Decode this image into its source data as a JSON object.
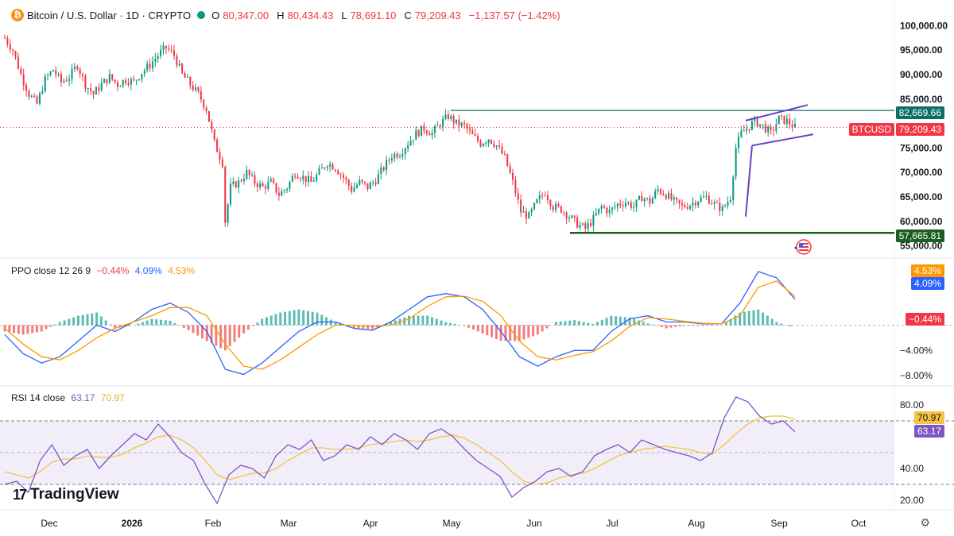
{
  "header": {
    "symbol_title": "Bitcoin / U.S. Dollar · 1D · CRYPTO",
    "open_label": "O",
    "open_value": "80,347.00",
    "high_label": "H",
    "high_value": "80,434.43",
    "low_label": "L",
    "low_value": "78,691.10",
    "close_label": "C",
    "close_value": "79,209.43",
    "change_value": "−1,137.57 (−1.42%)",
    "symbol_icon": "bitcoin-icon"
  },
  "tags": {
    "resistance": "82,669.66",
    "symbol": "BTCUSD",
    "last_price": "79,209.43",
    "support": "57,665.81",
    "ppo_signal": "4.53%",
    "ppo_line": "4.09%",
    "ppo_hist": "−0.44%",
    "rsi_ma": "70.97",
    "rsi": "63.17"
  },
  "ppo_pane": {
    "title": "PPO close 12 26 9",
    "v1": "−0.44%",
    "v2": "4.09%",
    "v3": "4.53%"
  },
  "rsi_pane": {
    "title": "RSI 14 close",
    "v1": "63.17",
    "v2": "70.97"
  },
  "branding": {
    "name": "TradingView"
  },
  "colors": {
    "up": "#089981",
    "down": "#f23645",
    "ppo_line": "#2962ff",
    "signal": "#ff9800",
    "rsi": "#7e57c2",
    "rsi_ma": "#f5c242",
    "support": "#1b5e20",
    "resistance": "#0b6e68",
    "channel": "#6a3fc7"
  },
  "chart_data": [
    {
      "type": "candlestick",
      "title": "Bitcoin / U.S. Dollar · 1D · CRYPTO",
      "yticks": [
        "100,000.00",
        "95,000.00",
        "90,000.00",
        "85,000.00",
        "75,000.00",
        "70,000.00",
        "65,000.00",
        "60,000.00",
        "55,000.00"
      ],
      "ylim": [
        53000,
        102000
      ],
      "xticks": [
        "Dec",
        "2026",
        "Feb",
        "Mar",
        "Apr",
        "May",
        "Jun",
        "Jul",
        "Aug",
        "Sep",
        "Oct"
      ],
      "last_close": 79209.43,
      "resistance_level": 82669.66,
      "support_level": 57665.81,
      "closes_path": [
        [
          0,
          97500
        ],
        [
          3,
          95000
        ],
        [
          6,
          90000
        ],
        [
          9,
          86000
        ],
        [
          12,
          84000
        ],
        [
          15,
          89000
        ],
        [
          18,
          91000
        ],
        [
          21,
          88500
        ],
        [
          24,
          89500
        ],
        [
          27,
          92000
        ],
        [
          30,
          88000
        ],
        [
          33,
          86000
        ],
        [
          36,
          88000
        ],
        [
          39,
          89500
        ],
        [
          42,
          88000
        ],
        [
          45,
          89000
        ],
        [
          48,
          88500
        ],
        [
          51,
          90500
        ],
        [
          54,
          92000
        ],
        [
          57,
          94000
        ],
        [
          60,
          95500
        ],
        [
          63,
          94000
        ],
        [
          66,
          90000
        ],
        [
          69,
          88000
        ],
        [
          72,
          86000
        ],
        [
          75,
          83000
        ],
        [
          78,
          76000
        ],
        [
          81,
          72000
        ],
        [
          82,
          60000
        ],
        [
          84,
          67000
        ],
        [
          87,
          68000
        ],
        [
          90,
          70000
        ],
        [
          93,
          68000
        ],
        [
          96,
          67000
        ],
        [
          99,
          68000
        ],
        [
          102,
          65500
        ],
        [
          105,
          67000
        ],
        [
          108,
          70000
        ],
        [
          111,
          69000
        ],
        [
          114,
          68000
        ],
        [
          117,
          70000
        ],
        [
          120,
          72000
        ],
        [
          123,
          71000
        ],
        [
          126,
          69000
        ],
        [
          129,
          66500
        ],
        [
          132,
          68000
        ],
        [
          135,
          67000
        ],
        [
          138,
          68500
        ],
        [
          141,
          71000
        ],
        [
          144,
          73500
        ],
        [
          147,
          74000
        ],
        [
          150,
          76000
        ],
        [
          153,
          78000
        ],
        [
          156,
          79000
        ],
        [
          159,
          78000
        ],
        [
          162,
          80000
        ],
        [
          165,
          81500
        ],
        [
          168,
          80000
        ],
        [
          171,
          79500
        ],
        [
          174,
          77500
        ],
        [
          177,
          76000
        ],
        [
          180,
          77000
        ],
        [
          183,
          75500
        ],
        [
          186,
          73000
        ],
        [
          189,
          68000
        ],
        [
          192,
          62000
        ],
        [
          195,
          61000
        ],
        [
          198,
          64000
        ],
        [
          201,
          66000
        ],
        [
          204,
          63000
        ],
        [
          207,
          62500
        ],
        [
          210,
          61000
        ],
        [
          213,
          59500
        ],
        [
          216,
          58500
        ],
        [
          219,
          60500
        ],
        [
          222,
          63000
        ],
        [
          225,
          62000
        ],
        [
          228,
          63500
        ],
        [
          231,
          64000
        ],
        [
          234,
          63000
        ],
        [
          237,
          65000
        ],
        [
          240,
          64000
        ],
        [
          243,
          66500
        ],
        [
          246,
          65500
        ],
        [
          249,
          64000
        ],
        [
          252,
          63000
        ],
        [
          255,
          63500
        ],
        [
          258,
          64500
        ],
        [
          261,
          65000
        ],
        [
          264,
          63500
        ],
        [
          267,
          62500
        ],
        [
          270,
          65000
        ],
        [
          271,
          70000
        ],
        [
          272,
          75000
        ],
        [
          274,
          78000
        ],
        [
          276,
          79000
        ],
        [
          279,
          80500
        ],
        [
          282,
          79500
        ],
        [
          285,
          78000
        ],
        [
          288,
          81000
        ],
        [
          291,
          80500
        ],
        [
          294,
          79209
        ]
      ]
    },
    {
      "type": "line",
      "title": "PPO close 12 26 9",
      "yticks": [
        "4.53%",
        "4.09%",
        "−4.00%",
        "−8.00%"
      ],
      "ylim": [
        -9,
        9
      ],
      "series": [
        {
          "name": "PPO",
          "values": [
            -1.5,
            -4.5,
            -6.0,
            -5.0,
            -2.5,
            0.0,
            -1.0,
            0.5,
            2.5,
            3.5,
            2.0,
            -1.0,
            -7.0,
            -7.8,
            -6.0,
            -3.5,
            -1.0,
            0.5,
            0.5,
            -0.5,
            -0.8,
            0.5,
            2.5,
            4.5,
            5.0,
            4.5,
            2.5,
            -1.0,
            -5.0,
            -6.5,
            -5.0,
            -4.0,
            -4.0,
            -1.0,
            1.0,
            1.5,
            0.5,
            0.5,
            0.2,
            0.2,
            3.5,
            8.5,
            7.5,
            4.09
          ]
        },
        {
          "name": "Signal",
          "values": [
            -0.5,
            -3.0,
            -5.0,
            -5.5,
            -4.0,
            -2.0,
            -0.5,
            0.5,
            1.5,
            2.8,
            2.8,
            1.5,
            -3.0,
            -6.5,
            -7.0,
            -5.5,
            -3.5,
            -1.5,
            0.0,
            0.0,
            -0.2,
            0.0,
            1.0,
            3.0,
            4.5,
            4.6,
            3.8,
            1.5,
            -2.5,
            -5.0,
            -5.5,
            -4.8,
            -4.2,
            -2.5,
            -0.2,
            1.2,
            1.0,
            0.6,
            0.3,
            0.2,
            1.5,
            6.0,
            7.0,
            4.53
          ]
        }
      ],
      "hist_last": -0.44
    },
    {
      "type": "line",
      "title": "RSI 14 close",
      "yticks": [
        "80.00",
        "70.97",
        "63.17",
        "40.00",
        "20.00"
      ],
      "ylim": [
        15,
        90
      ],
      "band": [
        30,
        70
      ],
      "series": [
        {
          "name": "RSI",
          "values": [
            30,
            32,
            25,
            45,
            55,
            42,
            48,
            52,
            40,
            48,
            55,
            62,
            58,
            68,
            60,
            50,
            45,
            30,
            18,
            36,
            42,
            40,
            34,
            48,
            55,
            52,
            58,
            45,
            48,
            55,
            52,
            60,
            55,
            62,
            58,
            52,
            62,
            65,
            60,
            52,
            45,
            40,
            35,
            22,
            28,
            32,
            38,
            40,
            35,
            38,
            48,
            52,
            55,
            50,
            58,
            55,
            52,
            50,
            48,
            45,
            50,
            72,
            85,
            82,
            73,
            68,
            70,
            63.17
          ]
        },
        {
          "name": "RSI MA",
          "values": [
            38,
            36,
            34,
            38,
            44,
            46,
            46,
            48,
            47,
            47,
            49,
            53,
            56,
            60,
            61,
            58,
            53,
            45,
            36,
            33,
            35,
            37,
            37,
            40,
            45,
            49,
            53,
            53,
            52,
            52,
            53,
            55,
            56,
            57,
            58,
            57,
            58,
            60,
            61,
            59,
            55,
            50,
            45,
            38,
            32,
            30,
            31,
            34,
            36,
            37,
            40,
            44,
            48,
            50,
            52,
            53,
            54,
            53,
            52,
            50,
            49,
            55,
            62,
            68,
            72,
            73,
            73,
            70.97
          ]
        }
      ]
    }
  ]
}
